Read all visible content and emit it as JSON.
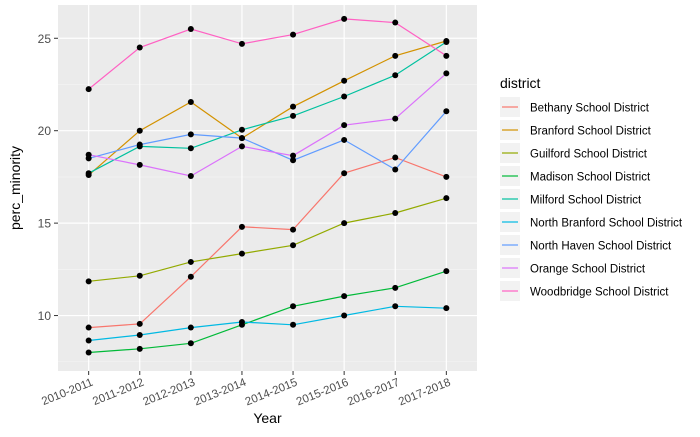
{
  "chart_data": {
    "type": "line",
    "xlabel": "Year",
    "ylabel": "perc_minority",
    "categories": [
      "2010-2011",
      "2011-2012",
      "2012-2013",
      "2013-2014",
      "2014-2015",
      "2015-2016",
      "2016-2017",
      "2017-2018"
    ],
    "ylim": [
      7.0,
      26.8
    ],
    "yticks": [
      10,
      15,
      20,
      25
    ],
    "grid": true,
    "legend": {
      "title": "district",
      "placement": "right"
    },
    "series": [
      {
        "name": "Bethany School District",
        "color": "#F8766D",
        "values": [
          9.35,
          9.55,
          12.1,
          14.8,
          14.65,
          17.7,
          18.55,
          17.5
        ]
      },
      {
        "name": "Branford School District",
        "color": "#D39200",
        "values": [
          17.6,
          20.0,
          21.55,
          19.6,
          21.3,
          22.7,
          24.05,
          24.85
        ]
      },
      {
        "name": "Guilford School District",
        "color": "#93AA00",
        "values": [
          11.85,
          12.15,
          12.9,
          13.35,
          13.8,
          15.0,
          15.55,
          16.35
        ]
      },
      {
        "name": "Madison School District",
        "color": "#00BA38",
        "values": [
          8.0,
          8.2,
          8.5,
          9.5,
          10.5,
          11.05,
          11.5,
          12.4
        ]
      },
      {
        "name": "Milford School District",
        "color": "#00C19F",
        "values": [
          17.7,
          19.15,
          19.05,
          20.05,
          20.8,
          21.85,
          23.0,
          24.8
        ]
      },
      {
        "name": "North Branford School District",
        "color": "#00B9E3",
        "values": [
          8.65,
          8.95,
          9.35,
          9.65,
          9.5,
          10.0,
          10.5,
          10.4
        ]
      },
      {
        "name": "North Haven School District",
        "color": "#619CFF",
        "values": [
          18.5,
          19.25,
          19.8,
          19.6,
          18.4,
          19.5,
          17.9,
          21.05
        ]
      },
      {
        "name": "Orange School District",
        "color": "#DB72FB",
        "values": [
          18.7,
          18.15,
          17.55,
          19.15,
          18.65,
          20.3,
          20.65,
          23.1
        ]
      },
      {
        "name": "Woodbridge School District",
        "color": "#FF61C3",
        "values": [
          22.25,
          24.5,
          25.5,
          24.7,
          25.2,
          26.05,
          25.85,
          24.05
        ]
      }
    ]
  }
}
